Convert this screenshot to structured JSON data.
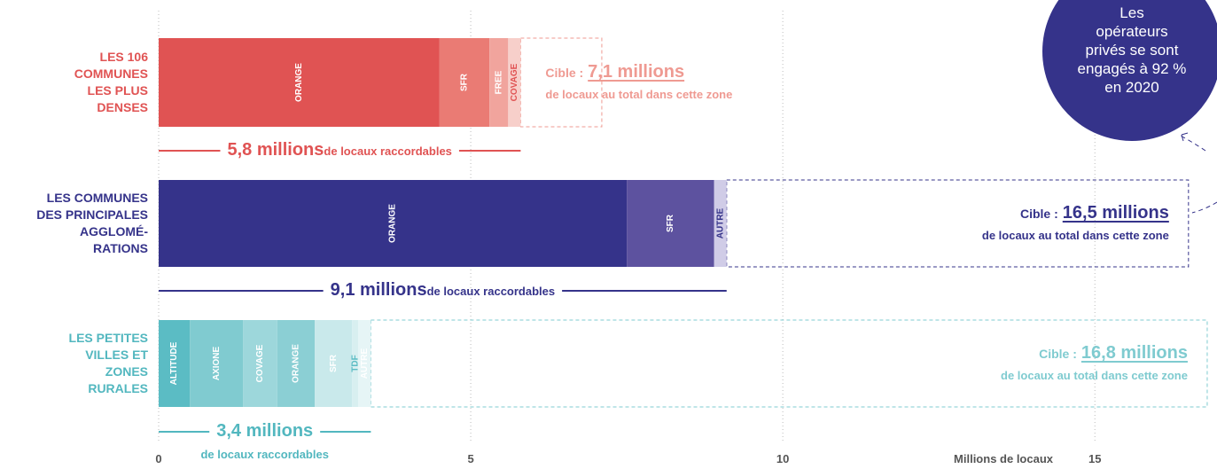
{
  "chart_data": {
    "type": "stacked_bar",
    "categories": [
      "LES 106\nCOMMUNES\nLES PLUS\nDENSES",
      "LES COMMUNES\nDES PRINCIPALES\nAGGLOMÉ-\nRATIONS",
      "LES PETITES\nVILLES ET\nZONES\nRURALES"
    ],
    "xlim": [
      0,
      16.9
    ],
    "xticks": [
      0,
      5,
      10,
      15
    ],
    "xlabel": "Millions de locaux",
    "grid": true,
    "groups": [
      {
        "color": "#e05353",
        "target_color": "#ef9a92",
        "segments": [
          {
            "name": "ORANGE",
            "value": 4.5,
            "color": "#e05353",
            "text_color": "#ffffff"
          },
          {
            "name": "SFR",
            "value": 0.8,
            "color": "#ea7b74",
            "text_color": "#ffffff"
          },
          {
            "name": "FREE",
            "value": 0.3,
            "color": "#f1a49d",
            "text_color": "#ffffff"
          },
          {
            "name": "COVAGE",
            "value": 0.2,
            "color": "#f7cfca",
            "text_color": "#e05353"
          }
        ],
        "total": 5.8,
        "total_label": "5,8 millions",
        "total_suffix": "de locaux raccordables",
        "target": 7.1,
        "target_prefix": "Cible :",
        "target_label": "7,1 millions",
        "target_suffix": "de locaux au total dans cette zone"
      },
      {
        "color": "#35338a",
        "target_color": "#35338a",
        "segments": [
          {
            "name": "ORANGE",
            "value": 7.5,
            "color": "#35338a",
            "text_color": "#ffffff"
          },
          {
            "name": "SFR",
            "value": 1.4,
            "color": "#5d529f",
            "text_color": "#ffffff"
          },
          {
            "name": "AUTRE",
            "value": 0.2,
            "color": "#d0cce7",
            "text_color": "#35338a"
          }
        ],
        "total": 9.1,
        "total_label": "9,1 millions",
        "total_suffix": "de locaux raccordables",
        "target": 16.5,
        "target_prefix": "Cible :",
        "target_label": "16,5 millions",
        "target_suffix": "de locaux au total dans cette zone"
      },
      {
        "color": "#52b7bf",
        "target_color": "#7fcbd0",
        "segments": [
          {
            "name": "ALTITUDE",
            "value": 0.5,
            "color": "#5bbcc4",
            "text_color": "#ffffff"
          },
          {
            "name": "AXIONE",
            "value": 0.85,
            "color": "#80cbd0",
            "text_color": "#ffffff"
          },
          {
            "name": "COVAGE",
            "value": 0.55,
            "color": "#9dd7db",
            "text_color": "#ffffff"
          },
          {
            "name": "ORANGE",
            "value": 0.6,
            "color": "#8bcfd4",
            "text_color": "#ffffff"
          },
          {
            "name": "SFR",
            "value": 0.6,
            "color": "#c9e9eb",
            "text_color": "#ffffff"
          },
          {
            "name": "TDF",
            "value": 0.1,
            "color": "#d8eff0",
            "text_color": "#5bbcc4"
          },
          {
            "name": "AUTRE",
            "value": 0.2,
            "color": "#e6f5f6",
            "text_color": "#ffffff"
          }
        ],
        "total": 3.4,
        "total_label": "3,4 millions",
        "total_suffix": "de locaux raccordables",
        "target": 16.8,
        "target_prefix": "Cible :",
        "target_label": "16,8 millions",
        "target_suffix": "de locaux au total dans cette zone"
      }
    ],
    "callout": {
      "text": "Les\nopérateurs\nprivés se sont\nengagés à 92 %\nen 2020",
      "color": "#35338a"
    }
  }
}
